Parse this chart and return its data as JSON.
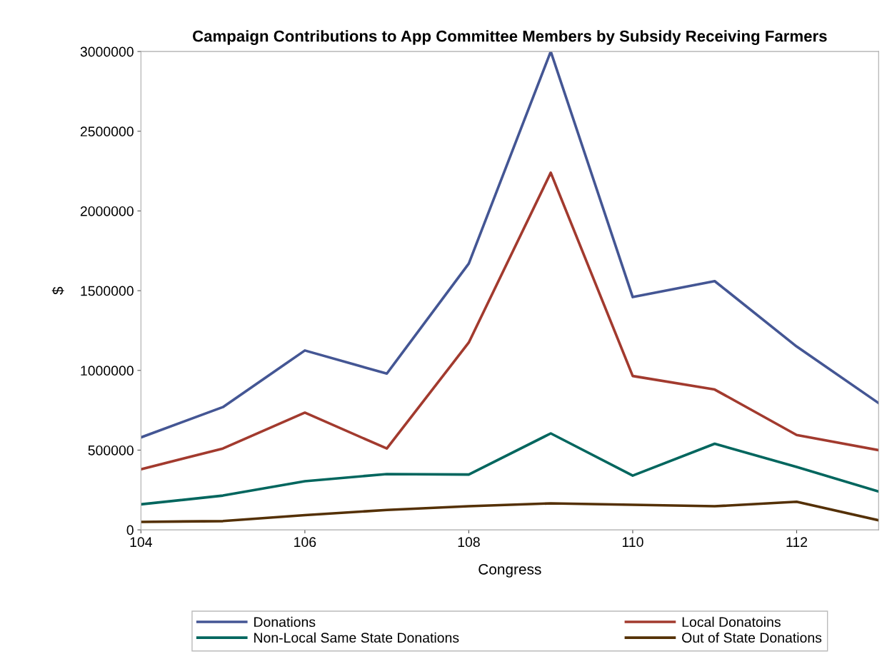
{
  "chart_data": {
    "type": "line",
    "title": "Campaign Contributions to App Committee Members by Subsidy Receiving Farmers",
    "xlabel": "Congress",
    "ylabel": "$",
    "x": [
      104,
      105,
      106,
      107,
      108,
      109,
      110,
      111,
      112,
      113
    ],
    "series": [
      {
        "name": "Donations",
        "color": "#445694",
        "values": [
          580000,
          770000,
          1125000,
          980000,
          1670000,
          3000000,
          1460000,
          1560000,
          1150000,
          795000
        ]
      },
      {
        "name": "Local Donatoins",
        "color": "#a23a2e",
        "values": [
          380000,
          510000,
          735000,
          510000,
          1175000,
          2240000,
          965000,
          880000,
          595000,
          500000
        ]
      },
      {
        "name": "Non-Local Same State Donations",
        "color": "#01665e",
        "values": [
          160000,
          215000,
          305000,
          350000,
          347000,
          605000,
          340000,
          540000,
          395000,
          240000
        ]
      },
      {
        "name": "Out of State Donations",
        "color": "#543005",
        "values": [
          50000,
          55000,
          92000,
          125000,
          148000,
          166000,
          157000,
          148000,
          176000,
          60000
        ]
      }
    ],
    "xlim": [
      104,
      113
    ],
    "xticks": [
      104,
      106,
      108,
      110,
      112
    ],
    "ylim": [
      0,
      3000000
    ],
    "yticks": [
      0,
      500000,
      1000000,
      1500000,
      2000000,
      2500000,
      3000000
    ],
    "grid": false,
    "legend": "bottom",
    "marker": "none",
    "line_style": "solid"
  }
}
